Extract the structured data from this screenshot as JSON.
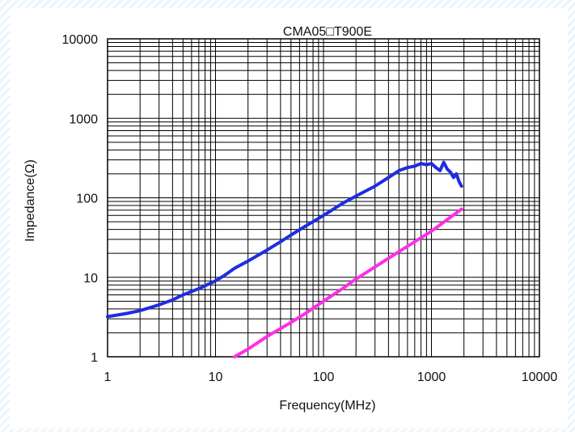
{
  "chart_data": {
    "type": "line",
    "title": "CMA05□T900E",
    "xlabel": "Frequency(MHz)",
    "ylabel": "Impedance(Ω)",
    "x_scale": "log",
    "y_scale": "log",
    "xlim": [
      1,
      10000
    ],
    "ylim": [
      1,
      10000
    ],
    "x_ticks": [
      "1",
      "10",
      "100",
      "1000",
      "10000"
    ],
    "y_ticks": [
      "1",
      "10",
      "100",
      "1000",
      "10000"
    ],
    "grid": true,
    "series": [
      {
        "color": "#1f2de0",
        "points": [
          [
            1,
            3.2
          ],
          [
            1.5,
            3.5
          ],
          [
            2,
            3.8
          ],
          [
            3,
            4.5
          ],
          [
            4,
            5.2
          ],
          [
            5,
            6
          ],
          [
            7,
            7.2
          ],
          [
            10,
            9
          ],
          [
            12,
            10.5
          ],
          [
            15,
            13
          ],
          [
            20,
            16
          ],
          [
            30,
            22
          ],
          [
            40,
            28
          ],
          [
            50,
            34
          ],
          [
            70,
            45
          ],
          [
            100,
            60
          ],
          [
            150,
            85
          ],
          [
            200,
            105
          ],
          [
            300,
            140
          ],
          [
            400,
            180
          ],
          [
            500,
            220
          ],
          [
            600,
            240
          ],
          [
            700,
            250
          ],
          [
            800,
            270
          ],
          [
            900,
            260
          ],
          [
            1000,
            270
          ],
          [
            1100,
            240
          ],
          [
            1200,
            220
          ],
          [
            1300,
            280
          ],
          [
            1400,
            230
          ],
          [
            1500,
            210
          ],
          [
            1600,
            180
          ],
          [
            1700,
            200
          ],
          [
            1800,
            160
          ],
          [
            1900,
            140
          ]
        ]
      },
      {
        "color": "#ff2ee6",
        "points": [
          [
            15,
            1
          ],
          [
            20,
            1.25
          ],
          [
            30,
            1.8
          ],
          [
            50,
            2.7
          ],
          [
            70,
            3.6
          ],
          [
            100,
            5
          ],
          [
            150,
            7.2
          ],
          [
            200,
            9.5
          ],
          [
            300,
            13.5
          ],
          [
            500,
            21
          ],
          [
            700,
            28
          ],
          [
            1000,
            38
          ],
          [
            1500,
            57
          ],
          [
            1900,
            72
          ]
        ]
      }
    ]
  }
}
